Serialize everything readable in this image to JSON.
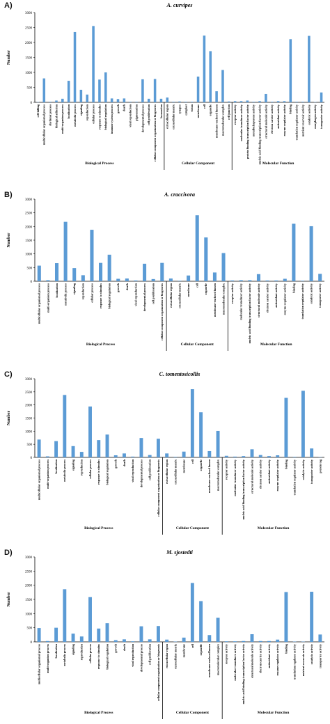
{
  "style": {
    "bar_color": "#5b9bd5",
    "axis_color": "#000000"
  },
  "chart_data": [
    {
      "type": "bar",
      "panel_label": "A)",
      "title": "A. curvipes",
      "ylabel": "Number",
      "ylim": [
        0,
        3000
      ],
      "yticks": [
        "0",
        "500",
        "1000",
        "1500",
        "2000",
        "2500",
        "3000"
      ],
      "categories": [
        "cell killing",
        "multicellular organismal process",
        "rhythmic process",
        "biological adhesion",
        "multi-organism process",
        "localization",
        "metabolic process",
        "signaling",
        "reproduction",
        "cellular process",
        "response to stimulus",
        "biological regulation",
        "immune system process",
        "growth",
        "death",
        "viral reproduction",
        "pigmentation",
        "developmental process",
        "cell proliferation",
        "cellular component organization or biogenesis",
        "locomotion",
        "extracellular region",
        "extracellular matrix",
        "synapse",
        "symplast",
        "virion",
        "membrane",
        "cell",
        "organelle",
        "membrane-enclosed lumen",
        "macromolecular complex",
        "cell junction",
        "receptor activity",
        "molecular transducer activity",
        "protein binding transcription factor activity",
        "metallochaperone activity",
        "nucleic acid binding transcription factor activity",
        "structural molecule activity",
        "electron carrier activity",
        "antioxidant activity",
        "enzyme regulator activity",
        "binding",
        "translation regulator activity",
        "nutrient reservoir activity",
        "catalytic activity",
        "morphogen activity",
        "transporter activity"
      ],
      "values": [
        10,
        800,
        20,
        60,
        120,
        720,
        2350,
        420,
        260,
        2550,
        760,
        1000,
        130,
        110,
        130,
        20,
        20,
        770,
        120,
        780,
        120,
        160,
        20,
        30,
        20,
        20,
        860,
        2230,
        1710,
        370,
        1080,
        30,
        40,
        40,
        60,
        20,
        40,
        280,
        20,
        40,
        40,
        2110,
        20,
        20,
        2220,
        10,
        330
      ],
      "groups": [
        {
          "label": "Biological Process",
          "start": 0,
          "end": 20
        },
        {
          "label": "Cellular Component",
          "start": 21,
          "end": 31
        },
        {
          "label": "Molecular Function",
          "start": 32,
          "end": 46
        }
      ]
    },
    {
      "type": "bar",
      "panel_label": "B)",
      "title": "A. craccivora",
      "ylabel": "Number",
      "ylim": [
        0,
        3000
      ],
      "yticks": [
        "0",
        "500",
        "1000",
        "1500",
        "2000",
        "2500",
        "3000"
      ],
      "categories": [
        "multicellular organismal process",
        "multi-organism process",
        "localization",
        "metabolic process",
        "signaling",
        "reproduction",
        "cellular process",
        "response to stimulus",
        "biological regulation",
        "growth",
        "death",
        "viral reproduction",
        "developmental process",
        "cell proliferation",
        "cellular component organization or biogenesis",
        "extracellular region",
        "extracellular matrix",
        "membrane",
        "cell",
        "organelle",
        "membrane-enclosed lumen",
        "macromolecular complex",
        "receptor activity",
        "molecular transducer activity",
        "nucleic acid binding transcription factor activity",
        "structural molecule activity",
        "electron carrier activity",
        "antioxidant activity",
        "enzyme regulator activity",
        "binding",
        "translation regulator activity",
        "catalytic activity",
        "transporter activity"
      ],
      "values": [
        570,
        40,
        660,
        2170,
        480,
        220,
        1880,
        670,
        970,
        90,
        100,
        30,
        640,
        80,
        670,
        100,
        20,
        210,
        2410,
        1600,
        320,
        1030,
        30,
        40,
        40,
        260,
        30,
        30,
        90,
        2100,
        20,
        2010,
        270
      ],
      "groups": [
        {
          "label": "Biological Process",
          "start": 0,
          "end": 14
        },
        {
          "label": "Cellular Component",
          "start": 15,
          "end": 21
        },
        {
          "label": "Molecular Function",
          "start": 22,
          "end": 32
        }
      ]
    },
    {
      "type": "bar",
      "panel_label": "C)",
      "title": "C. tomentosicollis",
      "ylabel": "Number",
      "ylim": [
        0,
        3000
      ],
      "yticks": [
        "0",
        "500",
        "1000",
        "1500",
        "2000",
        "2500",
        "3000"
      ],
      "categories": [
        "multicellular organismal process",
        "multi-organism process",
        "localization",
        "metabolic process",
        "signaling",
        "reproduction",
        "cellular process",
        "response to stimulus",
        "biological regulation",
        "growth",
        "death",
        "viral reproduction",
        "developmental process",
        "cell proliferation",
        "cellular component organization or biogenesis",
        "extracellular region",
        "extracellular matrix",
        "membrane",
        "cell",
        "organelle",
        "membrane-enclosed lumen",
        "macromolecular complex",
        "receptor activity",
        "molecular transducer activity",
        "nucleic acid binding transcription factor activity",
        "structural molecule activity",
        "electron carrier activity",
        "antioxidant activity",
        "enzyme regulator activity",
        "binding",
        "translation regulator activity",
        "catalytic activity",
        "transporter activity",
        "protein tag"
      ],
      "values": [
        680,
        40,
        620,
        2380,
        430,
        210,
        1940,
        660,
        870,
        80,
        150,
        30,
        740,
        90,
        710,
        150,
        20,
        220,
        2600,
        1720,
        240,
        1010,
        60,
        30,
        50,
        310,
        90,
        50,
        80,
        2270,
        20,
        2540,
        340,
        10
      ],
      "groups": [
        {
          "label": "Biological Process",
          "start": 0,
          "end": 14
        },
        {
          "label": "Cellular Component",
          "start": 15,
          "end": 21
        },
        {
          "label": "Molecular Function",
          "start": 22,
          "end": 33
        }
      ]
    },
    {
      "type": "bar",
      "panel_label": "D)",
      "title": "M. sjostedti",
      "ylabel": "Number",
      "ylim": [
        0,
        3000
      ],
      "yticks": [
        "0",
        "500",
        "1000",
        "1500",
        "2000",
        "2500",
        "3000"
      ],
      "categories": [
        "multicellular organismal process",
        "multi-organism process",
        "localization",
        "metabolic process",
        "signaling",
        "reproduction",
        "cellular process",
        "response to stimulus",
        "biological regulation",
        "growth",
        "death",
        "viral reproduction",
        "developmental process",
        "cell proliferation",
        "cellular component organization or biogenesis",
        "extracellular region",
        "extracellular matrix",
        "membrane",
        "cell",
        "organelle",
        "membrane-enclosed lumen",
        "macromolecular complex",
        "receptor activity",
        "molecular transducer activity",
        "nucleic acid binding transcription factor activity",
        "structural molecule activity",
        "electron carrier activity",
        "antioxidant activity",
        "enzyme regulator activity",
        "binding",
        "translation regulator activity",
        "nutrient reservoir activity",
        "catalytic activity",
        "transporter activity"
      ],
      "values": [
        490,
        30,
        500,
        1860,
        290,
        190,
        1580,
        470,
        660,
        60,
        90,
        20,
        550,
        90,
        560,
        80,
        10,
        150,
        2080,
        1440,
        240,
        850,
        20,
        20,
        30,
        270,
        30,
        30,
        80,
        1760,
        10,
        10,
        1770,
        260
      ],
      "groups": [
        {
          "label": "Biological Process",
          "start": 0,
          "end": 14
        },
        {
          "label": "Cellular Component",
          "start": 15,
          "end": 21
        },
        {
          "label": "Molecular Function",
          "start": 22,
          "end": 33
        }
      ]
    }
  ]
}
